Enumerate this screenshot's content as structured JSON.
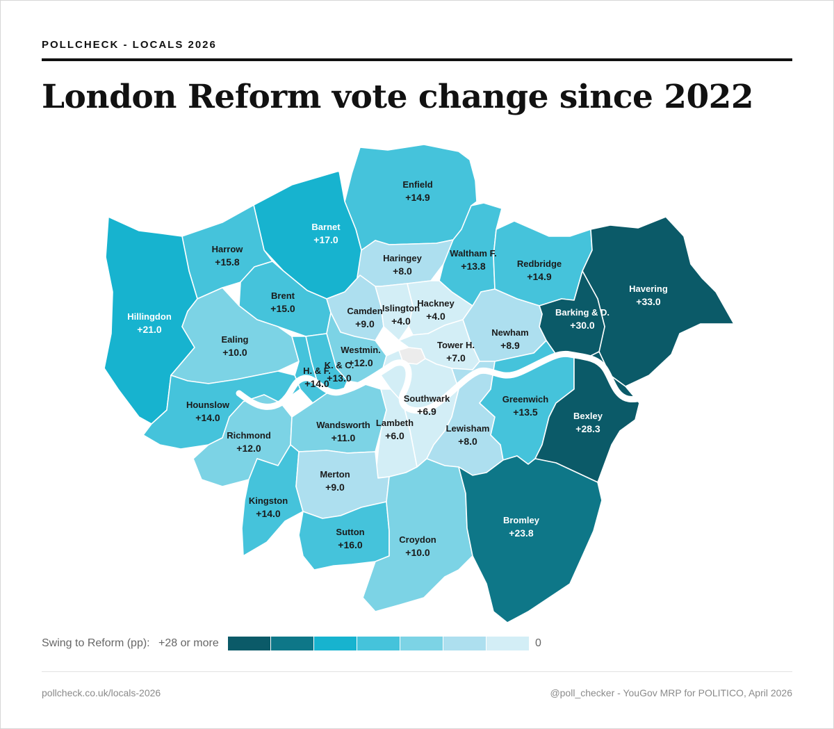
{
  "header": {
    "kicker": "POLLCHECK - LOCALS 2026",
    "title": "London Reform vote change since 2022"
  },
  "legend": {
    "label": "Swing to Reform (pp):",
    "max_label": "+28 or more",
    "min_label": "0",
    "scale_colors": [
      "#0b5a68",
      "#0e7788",
      "#17b3cf",
      "#45c3db",
      "#7cd3e5",
      "#addfef",
      "#d3eef6"
    ]
  },
  "footer": {
    "left": "pollcheck.co.uk/locals-2026",
    "right": "@poll_checker - YouGov MRP for POLITICO, April 2026"
  },
  "map_data": {
    "unit": "pp",
    "city_of_london_color": "#ececec",
    "boroughs": [
      {
        "name": "Enfield",
        "value": "+14.9",
        "color": "#45c3db"
      },
      {
        "name": "Barnet",
        "value": "+17.0",
        "color": "#17b3cf"
      },
      {
        "name": "Harrow",
        "value": "+15.8",
        "color": "#45c3db"
      },
      {
        "name": "Hillingdon",
        "value": "+21.0",
        "color": "#17b3cf"
      },
      {
        "name": "Haringey",
        "value": "+8.0",
        "color": "#addfef"
      },
      {
        "name": "Waltham F.",
        "value": "+13.8",
        "color": "#45c3db"
      },
      {
        "name": "Redbridge",
        "value": "+14.9",
        "color": "#45c3db"
      },
      {
        "name": "Havering",
        "value": "+33.0",
        "color": "#0b5a68"
      },
      {
        "name": "Barking & D.",
        "value": "+30.0",
        "color": "#0b5a68"
      },
      {
        "name": "Brent",
        "value": "+15.0",
        "color": "#45c3db"
      },
      {
        "name": "Camden",
        "value": "+9.0",
        "color": "#addfef"
      },
      {
        "name": "Islington",
        "value": "+4.0",
        "color": "#d3eef6"
      },
      {
        "name": "Hackney",
        "value": "+4.0",
        "color": "#d3eef6"
      },
      {
        "name": "Newham",
        "value": "+8.9",
        "color": "#addfef"
      },
      {
        "name": "Ealing",
        "value": "+10.0",
        "color": "#7cd3e5"
      },
      {
        "name": "Westmin.",
        "value": "+12.0",
        "color": "#7cd3e5"
      },
      {
        "name": "Tower H.",
        "value": "+7.0",
        "color": "#d3eef6"
      },
      {
        "name": "K. & C.",
        "value": "+13.0",
        "color": "#45c3db"
      },
      {
        "name": "H. & F.",
        "value": "+14.0",
        "color": "#45c3db"
      },
      {
        "name": "Hounslow",
        "value": "+14.0",
        "color": "#45c3db"
      },
      {
        "name": "Richmond",
        "value": "+12.0",
        "color": "#7cd3e5"
      },
      {
        "name": "Wandsworth",
        "value": "+11.0",
        "color": "#7cd3e5"
      },
      {
        "name": "Southwark",
        "value": "+6.9",
        "color": "#d3eef6"
      },
      {
        "name": "Lambeth",
        "value": "+6.0",
        "color": "#d3eef6"
      },
      {
        "name": "Lewisham",
        "value": "+8.0",
        "color": "#addfef"
      },
      {
        "name": "Greenwich",
        "value": "+13.5",
        "color": "#45c3db"
      },
      {
        "name": "Bexley",
        "value": "+28.3",
        "color": "#0b5a68"
      },
      {
        "name": "Kingston",
        "value": "+14.0",
        "color": "#45c3db"
      },
      {
        "name": "Merton",
        "value": "+9.0",
        "color": "#addfef"
      },
      {
        "name": "Sutton",
        "value": "+16.0",
        "color": "#45c3db"
      },
      {
        "name": "Croydon",
        "value": "+10.0",
        "color": "#7cd3e5"
      },
      {
        "name": "Bromley",
        "value": "+23.8",
        "color": "#0e7788"
      }
    ]
  }
}
